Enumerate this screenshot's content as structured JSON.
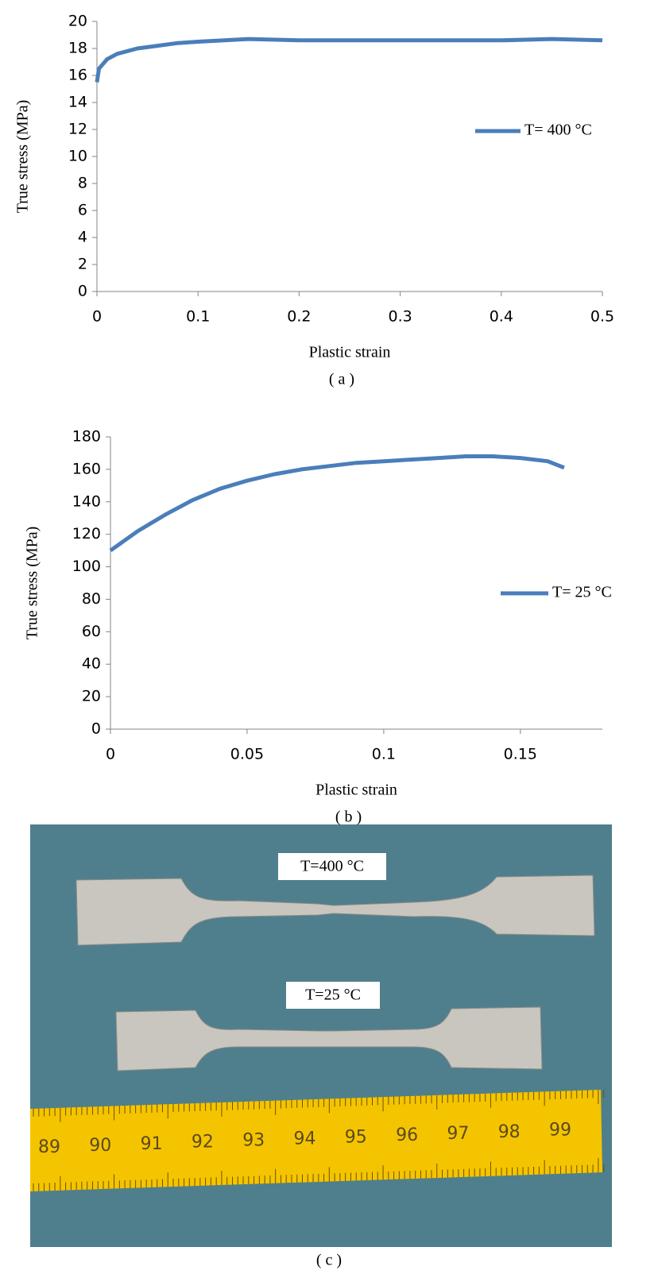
{
  "chart_data": [
    {
      "type": "line",
      "ylabel": "True stress (MPa)",
      "xlabel": "Plastic strain",
      "caption": "( a )",
      "x": [
        0,
        0.002,
        0.01,
        0.02,
        0.04,
        0.06,
        0.08,
        0.1,
        0.15,
        0.2,
        0.25,
        0.3,
        0.35,
        0.4,
        0.45,
        0.5
      ],
      "series": [
        {
          "name": "T= 400 °C",
          "color": "#4a7ebb",
          "values": [
            15.5,
            16.5,
            17.2,
            17.6,
            18.0,
            18.2,
            18.4,
            18.5,
            18.7,
            18.6,
            18.6,
            18.6,
            18.6,
            18.6,
            18.7,
            18.6
          ]
        }
      ],
      "xlim": [
        0,
        0.5
      ],
      "ylim": [
        0,
        20
      ],
      "xticks": [
        0,
        0.1,
        0.2,
        0.3,
        0.4,
        0.5
      ],
      "yticks": [
        0,
        2,
        4,
        6,
        8,
        10,
        12,
        14,
        16,
        18,
        20
      ]
    },
    {
      "type": "line",
      "ylabel": "True stress (MPa)",
      "xlabel": "Plastic strain",
      "caption": "( b )",
      "x": [
        0,
        0.01,
        0.02,
        0.03,
        0.04,
        0.05,
        0.06,
        0.07,
        0.08,
        0.09,
        0.1,
        0.11,
        0.12,
        0.13,
        0.14,
        0.15,
        0.16,
        0.166
      ],
      "series": [
        {
          "name": "T= 25 °C",
          "color": "#4a7ebb",
          "values": [
            110,
            122,
            132,
            141,
            148,
            153,
            157,
            160,
            162,
            164,
            165,
            166,
            167,
            168,
            168,
            167,
            165,
            161
          ]
        }
      ],
      "xlim": [
        0,
        0.18
      ],
      "ylim": [
        0,
        180
      ],
      "xticks": [
        0,
        0.05,
        0.1,
        0.15
      ],
      "yticks": [
        0,
        20,
        40,
        60,
        80,
        100,
        120,
        140,
        160,
        180
      ]
    }
  ],
  "photo": {
    "labels": [
      "T=400 °C",
      "T=25 °C"
    ],
    "ruler": [
      "89",
      "90",
      "91",
      "92",
      "93",
      "94",
      "95",
      "96",
      "97",
      "98",
      "99"
    ],
    "caption": "( c )"
  }
}
